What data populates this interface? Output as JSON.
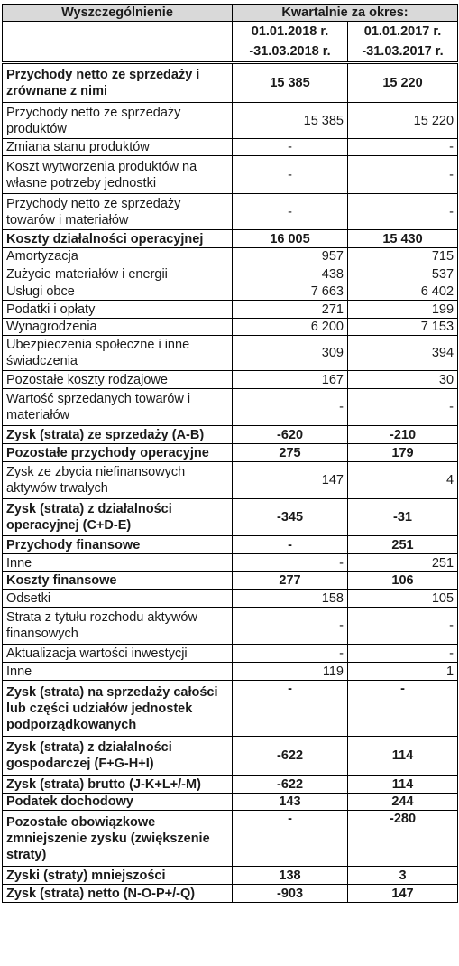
{
  "header": {
    "col_item": "Wyszczególnienie",
    "col_period": "Kwartalnie za okres:",
    "period_2018_line1": "01.01.2018 r.",
    "period_2018_line2": "-31.03.2018 r.",
    "period_2017_line1": "01.01.2017 r.",
    "period_2017_line2": "-31.03.2017 r."
  },
  "rows": [
    {
      "label": "Przychody netto ze sprzedaży i zrównane z nimi",
      "v2018": "15 385",
      "v2017": "15 220",
      "bold": true,
      "h": 44
    },
    {
      "label": "Przychody netto ze sprzedaży produktów",
      "v2018": "15 385",
      "v2017": "15 220",
      "bold": false,
      "h": 40
    },
    {
      "label": "Zmiana stanu produktów",
      "v2018": "-",
      "v2017": "-",
      "bold": false,
      "h": 19
    },
    {
      "label": "Koszt wytworzenia produktów na własne potrzeby jednostki",
      "v2018": "-",
      "v2017": "-",
      "bold": false,
      "h": 42
    },
    {
      "label": "Przychody netto ze sprzedaży towarów i materiałów",
      "v2018": "-",
      "v2017": "-",
      "bold": false,
      "h": 40
    },
    {
      "label": "Koszty działalności operacyjnej",
      "v2018": "16 005",
      "v2017": "15 430",
      "bold": true,
      "h": 20
    },
    {
      "label": "Amortyzacja",
      "v2018": "957",
      "v2017": "715",
      "bold": false,
      "h": 19
    },
    {
      "label": "Zużycie materiałów i energii",
      "v2018": "438",
      "v2017": "537",
      "bold": false,
      "h": 20
    },
    {
      "label": "Usługi obce",
      "v2018": "7 663",
      "v2017": "6 402",
      "bold": false,
      "h": 19
    },
    {
      "label": "Podatki i opłaty",
      "v2018": "271",
      "v2017": "199",
      "bold": false,
      "h": 20
    },
    {
      "label": "Wynagrodzenia",
      "v2018": "6 200",
      "v2017": "7 153",
      "bold": false,
      "h": 19
    },
    {
      "label": "Ubezpieczenia społeczne i inne świadczenia",
      "v2018": "309",
      "v2017": "394",
      "bold": false,
      "h": 39
    },
    {
      "label": "Pozostałe koszty rodzajowe",
      "v2018": "167",
      "v2017": "30",
      "bold": false,
      "h": 20
    },
    {
      "label": "Wartość sprzedanych towarów i materiałów",
      "v2018": "-",
      "v2017": "-",
      "bold": false,
      "h": 41
    },
    {
      "label": "Zysk (strata) ze sprzedaży (A-B)",
      "v2018": "-620",
      "v2017": "-210",
      "bold": true,
      "h": 20
    },
    {
      "label": "Pozostałe przychody operacyjne",
      "v2018": "275",
      "v2017": "179",
      "bold": true,
      "h": 20
    },
    {
      "label": "Zysk ze zbycia niefinansowych aktywów trwałych",
      "v2018": "147",
      "v2017": "4",
      "bold": false,
      "h": 41
    },
    {
      "label": "Zysk (strata) z działalności operacyjnej (C+D-E)",
      "v2018": "-345",
      "v2017": "-31",
      "bold": true,
      "h": 41
    },
    {
      "label": "Przychody finansowe",
      "v2018": "-",
      "v2017": "251",
      "bold": true,
      "h": 20
    },
    {
      "label": "Inne",
      "v2018": "-",
      "v2017": "251",
      "bold": false,
      "h": 20
    },
    {
      "label": "Koszty finansowe",
      "v2018": "277",
      "v2017": "106",
      "bold": true,
      "h": 19
    },
    {
      "label": "Odsetki",
      "v2018": "158",
      "v2017": "105",
      "bold": false,
      "h": 20
    },
    {
      "label": "Strata z tytułu rozchodu aktywów finansowych",
      "v2018": "-",
      "v2017": "-",
      "bold": false,
      "h": 41
    },
    {
      "label": "Aktualizacja wartości inwestycji",
      "v2018": "-",
      "v2017": "-",
      "bold": false,
      "h": 20
    },
    {
      "label": "Inne",
      "v2018": "119",
      "v2017": "1",
      "bold": false,
      "h": 20
    },
    {
      "label": "Zysk (strata) na sprzedaży całości lub części udziałów jednostek podporządkowanych",
      "v2018": "-",
      "v2017": "-",
      "bold": true,
      "h": 62,
      "top": true
    },
    {
      "label": "Zysk (strata) z działalności gospodarczej (F+G-H+I)",
      "v2018": "-622",
      "v2017": "114",
      "bold": true,
      "h": 43
    },
    {
      "label": "Zysk (strata) brutto (J-K+L+/-M)",
      "v2018": "-622",
      "v2017": "114",
      "bold": true,
      "h": 20
    },
    {
      "label": "Podatek dochodowy",
      "v2018": "143",
      "v2017": "244",
      "bold": true,
      "h": 19
    },
    {
      "label": "Pozostałe obowiązkowe zmniejszenie zysku (zwiększenie straty)",
      "v2018": "-",
      "v2017": "-280",
      "bold": true,
      "h": 62,
      "top": true
    },
    {
      "label": "Zyski (straty) mniejszości",
      "v2018": "138",
      "v2017": "3",
      "bold": true,
      "h": 20
    },
    {
      "label": "Zysk (strata) netto (N-O-P+/-Q)",
      "v2018": "-903",
      "v2017": "147",
      "bold": true,
      "h": 20
    }
  ]
}
